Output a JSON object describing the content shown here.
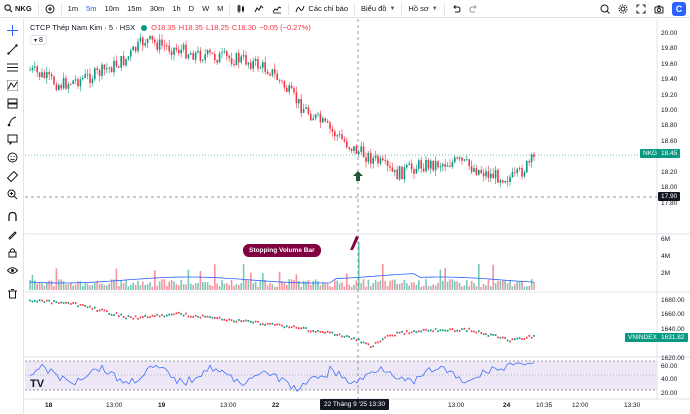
{
  "toolbar": {
    "symbol": "NKG",
    "intervals": [
      "1m",
      "5m",
      "10m",
      "15m",
      "30m",
      "1h",
      "D",
      "W",
      "M"
    ],
    "active_interval": "5m",
    "indicators_label": "Các chỉ báo",
    "chart_label": "Biểu đồ",
    "profile_label": "Hồ sơ",
    "logo": "C"
  },
  "legend": {
    "title": "CTCP Thép Nam Kim · 5 · HSX",
    "open": "O18.35",
    "high": "H18.35",
    "low": "L18.25",
    "close": "C18.30",
    "change": "−0.05 (−0.27%)",
    "sub_badge": "8"
  },
  "price_axis": {
    "labels": [
      "20.00",
      "19.80",
      "19.60",
      "19.40",
      "19.20",
      "19.00",
      "18.80",
      "18.60",
      "18.40",
      "18.20",
      "18.00",
      "17.80"
    ],
    "last_symbol": "NKG",
    "last_price": "18.45",
    "crosshair_price": "17.90"
  },
  "volume_axis": {
    "labels": [
      "6M",
      "4M",
      "2M"
    ]
  },
  "index_axis": {
    "labels": [
      "1680.00",
      "1660.00",
      "1640.00",
      "1620.00"
    ],
    "symbol": "VNINDEX",
    "last_value": "1631.82"
  },
  "rsi_axis": {
    "labels": [
      "60.00",
      "40.00",
      "20.00"
    ]
  },
  "time_axis": {
    "labels": [
      {
        "text": "18",
        "bold": true
      },
      {
        "text": "13:00",
        "bold": false
      },
      {
        "text": "19",
        "bold": true
      },
      {
        "text": "13:00",
        "bold": false
      },
      {
        "text": "22",
        "bold": true
      },
      {
        "text": "13:00",
        "bold": false
      },
      {
        "text": "24",
        "bold": true
      },
      {
        "text": "10:35",
        "bold": false
      },
      {
        "text": "12:00",
        "bold": false
      },
      {
        "text": "13:30",
        "bold": false
      }
    ],
    "crosshair_time": "22 Tháng 9 '25   13:30"
  },
  "annotation": {
    "text": "Stopping Volume Bar"
  },
  "colors": {
    "up": "#089981",
    "down": "#f23645",
    "accent": "#2962ff",
    "annotation_bg": "#800040",
    "rsi_band": "#ede7f6",
    "rsi_line": "#2962ff"
  },
  "icons": [
    "crosshair-icon",
    "trendline-icon",
    "fib-icon",
    "brush-icon",
    "text-icon",
    "pattern-icon",
    "prediction-icon",
    "shapes-icon",
    "emoji-icon",
    "ruler-icon",
    "zoom-icon",
    "magnet-icon",
    "lock-icon",
    "eye-icon",
    "trash-icon"
  ]
}
